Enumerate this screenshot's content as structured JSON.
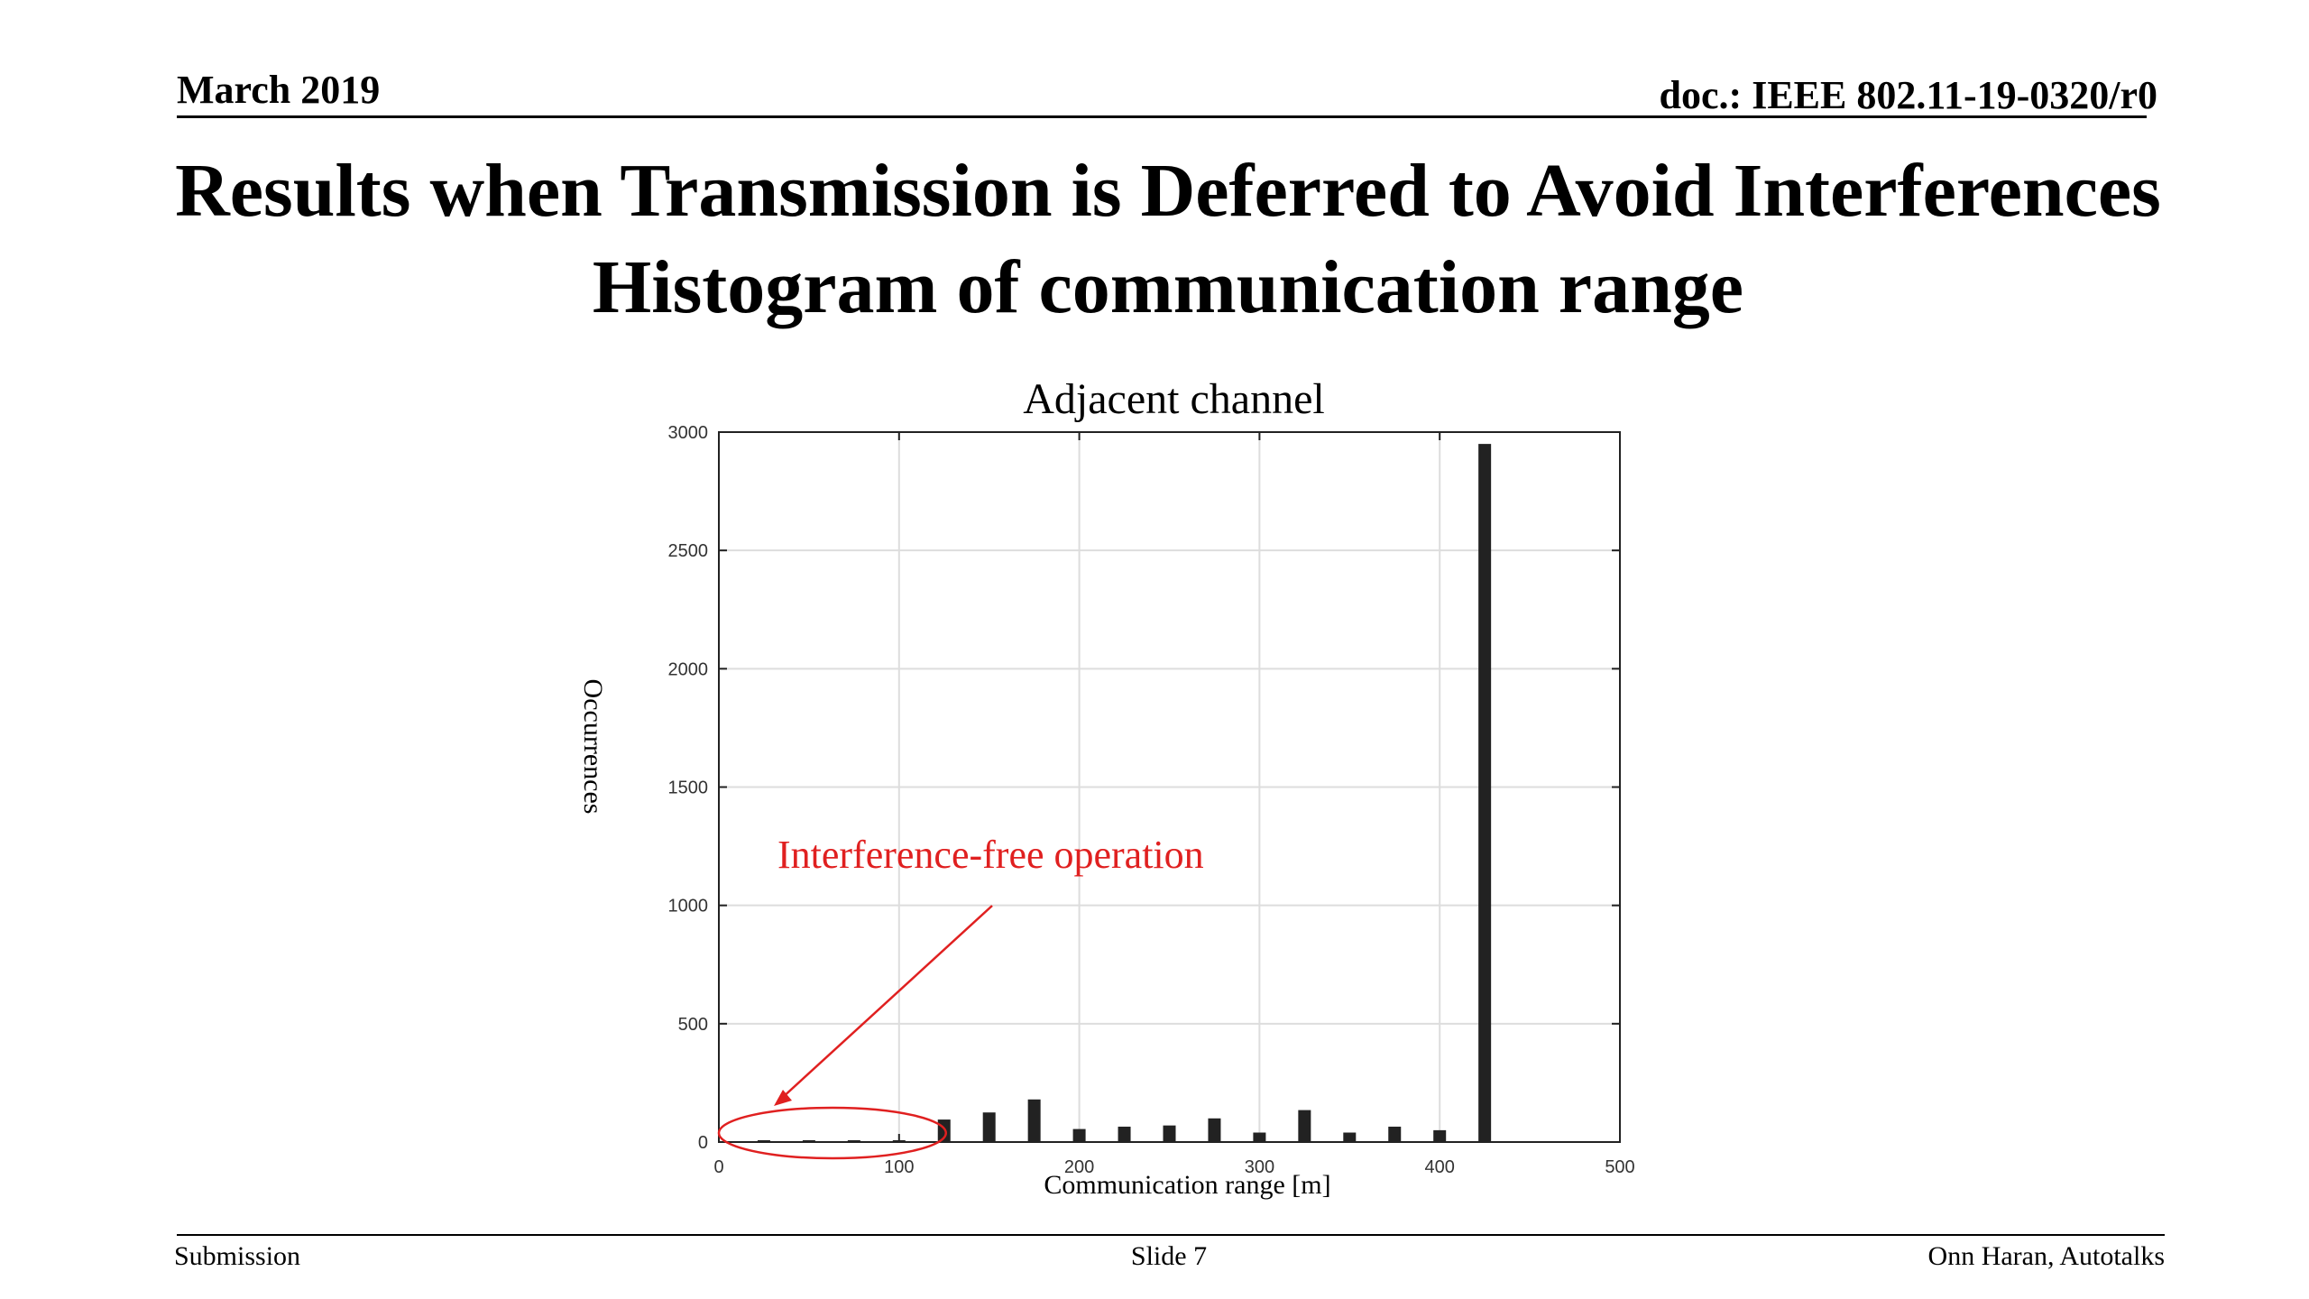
{
  "header": {
    "date": "March 2019",
    "doc_id": "doc.: IEEE 802.11-19-0320/r0"
  },
  "slide_title": {
    "line1": "Results when Transmission is Deferred to Avoid Interferences",
    "line2": "Histogram of communication range"
  },
  "chart_data": {
    "type": "bar",
    "title": "Adjacent channel",
    "xlabel": "Communication range [m]",
    "ylabel": "Occurrences",
    "xlim": [
      0,
      500
    ],
    "ylim": [
      0,
      3000
    ],
    "xticks": [
      0,
      100,
      200,
      300,
      400,
      500
    ],
    "yticks": [
      0,
      500,
      1000,
      1500,
      2000,
      2500,
      3000
    ],
    "grid": true,
    "bar_color": "#222222",
    "x": [
      25,
      50,
      75,
      100,
      125,
      150,
      175,
      200,
      225,
      250,
      275,
      300,
      325,
      350,
      375,
      400,
      425
    ],
    "values": [
      5,
      5,
      5,
      5,
      95,
      125,
      180,
      55,
      65,
      70,
      100,
      40,
      135,
      40,
      65,
      50,
      2950
    ],
    "annotation": {
      "text": "Interference-free operation",
      "color": "#e02020",
      "points_to_x_range": [
        0,
        120
      ]
    }
  },
  "footer": {
    "left": "Submission",
    "center": "Slide 7",
    "right": "Onn Haran, Autotalks"
  }
}
